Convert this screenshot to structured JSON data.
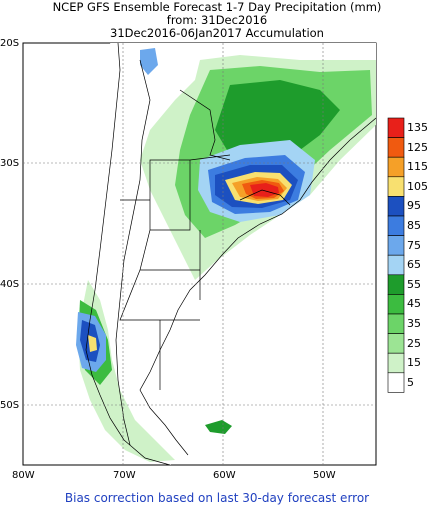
{
  "title_line1": "NCEP GFS Ensemble Forecast 1-7 Day Precipitation (mm)",
  "title_line2": "from: 31Dec2016",
  "title_line3": "31Dec2016-06Jan2017 Accumulation",
  "footer": "Bias correction based on last 30-day forecast error",
  "lat_labels": [
    "20S",
    "30S",
    "40S",
    "50S"
  ],
  "lon_labels": [
    "80W",
    "70W",
    "60W",
    "50W"
  ],
  "colorbar": {
    "labels": [
      "135",
      "125",
      "115",
      "105",
      "95",
      "85",
      "75",
      "65",
      "55",
      "45",
      "35",
      "25",
      "15",
      "5"
    ],
    "colors": [
      "#e8201a",
      "#f05a10",
      "#f5a028",
      "#f8e070",
      "#1c50c0",
      "#3c7ce0",
      "#6ca8ec",
      "#a4d4f4",
      "#1e9c2c",
      "#3cbc40",
      "#6cd468",
      "#9ce494",
      "#cff2c8",
      "#ffffff"
    ]
  }
}
